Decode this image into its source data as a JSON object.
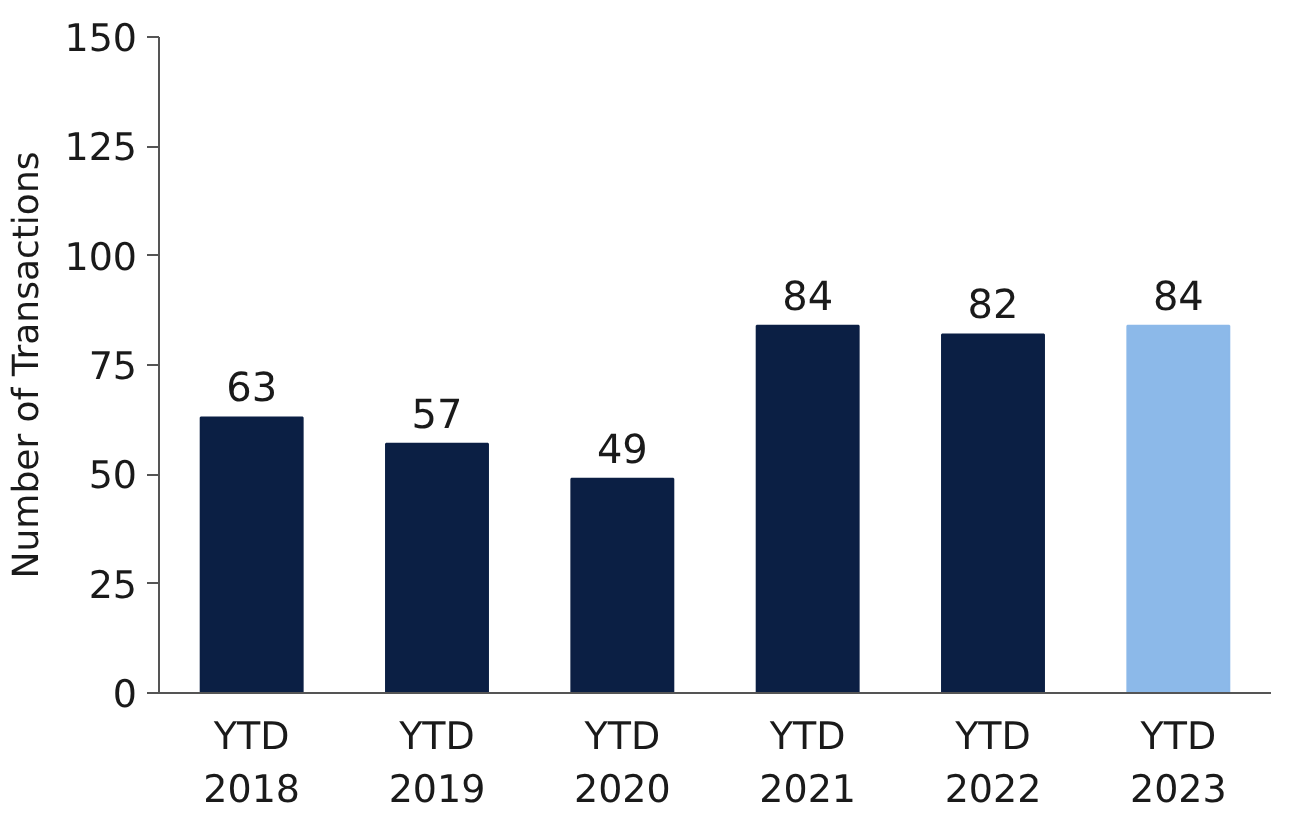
{
  "chart_data": {
    "type": "bar",
    "ylabel": "Number of Transactions",
    "categories": [
      "YTD\n2018",
      "YTD\n2019",
      "YTD\n2020",
      "YTD\n2021",
      "YTD\n2022",
      "YTD\n2023"
    ],
    "values": [
      63,
      57,
      49,
      84,
      82,
      84
    ],
    "colors": [
      "#0b1f44",
      "#0b1f44",
      "#0b1f44",
      "#0b1f44",
      "#0b1f44",
      "#8cb9e9"
    ],
    "ylim": [
      0,
      150
    ],
    "yticks": [
      0,
      25,
      50,
      75,
      100,
      125,
      150
    ],
    "data_labels": true,
    "grid": false
  }
}
